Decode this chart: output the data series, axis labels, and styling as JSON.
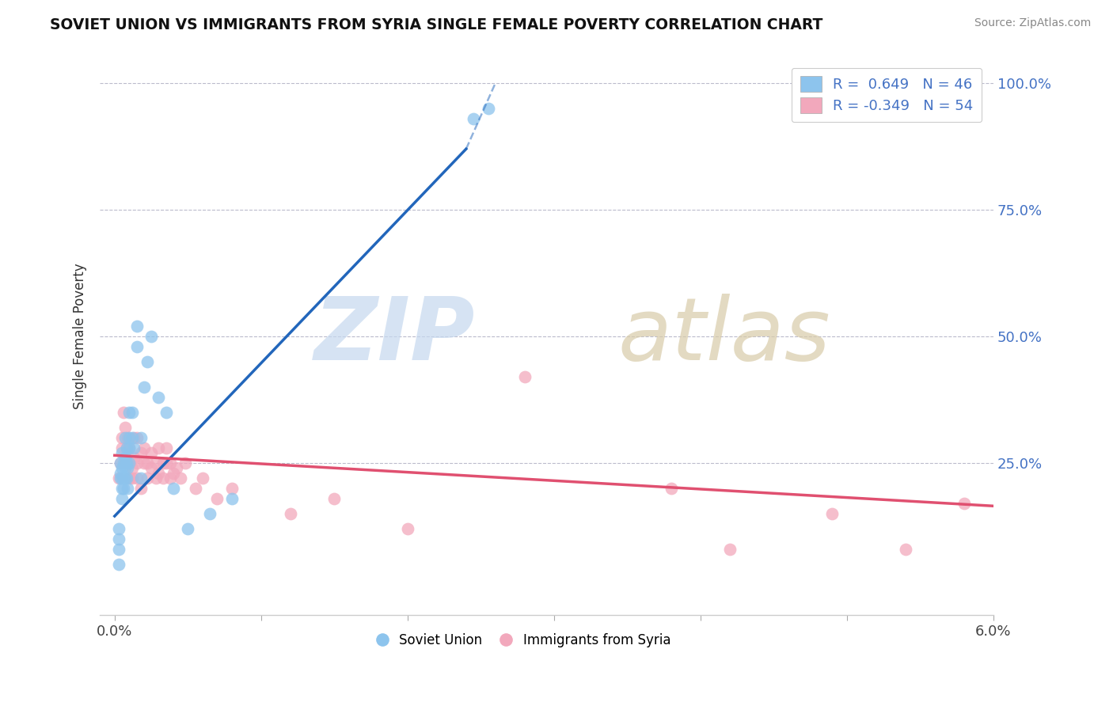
{
  "title": "SOVIET UNION VS IMMIGRANTS FROM SYRIA SINGLE FEMALE POVERTY CORRELATION CHART",
  "source": "Source: ZipAtlas.com",
  "ylabel": "Single Female Poverty",
  "legend_soviet": "Soviet Union",
  "legend_syria": "Immigrants from Syria",
  "R_soviet": 0.649,
  "N_soviet": 46,
  "R_syria": -0.349,
  "N_syria": 54,
  "soviet_color": "#8DC4ED",
  "soviet_line_color": "#2266BB",
  "syria_color": "#F2A8BC",
  "syria_line_color": "#E05070",
  "background_color": "#FFFFFF",
  "xmin": 0.0,
  "xmax": 0.06,
  "ymin": -0.05,
  "ymax": 1.05,
  "soviet_x": [
    0.0003,
    0.0003,
    0.0003,
    0.0003,
    0.0004,
    0.0004,
    0.0004,
    0.0005,
    0.0005,
    0.0005,
    0.0005,
    0.0005,
    0.0006,
    0.0006,
    0.0006,
    0.0007,
    0.0007,
    0.0007,
    0.0007,
    0.0008,
    0.0008,
    0.0008,
    0.0009,
    0.0009,
    0.001,
    0.001,
    0.001,
    0.001,
    0.0012,
    0.0012,
    0.0013,
    0.0015,
    0.0015,
    0.0018,
    0.0018,
    0.002,
    0.0022,
    0.0025,
    0.003,
    0.0035,
    0.004,
    0.005,
    0.0065,
    0.008,
    0.0245,
    0.0255
  ],
  "soviet_y": [
    0.05,
    0.08,
    0.1,
    0.12,
    0.22,
    0.23,
    0.25,
    0.18,
    0.2,
    0.22,
    0.24,
    0.27,
    0.2,
    0.22,
    0.25,
    0.22,
    0.24,
    0.26,
    0.3,
    0.22,
    0.25,
    0.28,
    0.2,
    0.24,
    0.25,
    0.28,
    0.3,
    0.35,
    0.3,
    0.35,
    0.28,
    0.48,
    0.52,
    0.22,
    0.3,
    0.4,
    0.45,
    0.5,
    0.38,
    0.35,
    0.2,
    0.12,
    0.15,
    0.18,
    0.93,
    0.95
  ],
  "syria_x": [
    0.0003,
    0.0004,
    0.0005,
    0.0005,
    0.0006,
    0.0007,
    0.0007,
    0.0008,
    0.0009,
    0.001,
    0.001,
    0.001,
    0.0012,
    0.0012,
    0.0013,
    0.0013,
    0.0015,
    0.0015,
    0.0015,
    0.0018,
    0.0018,
    0.002,
    0.002,
    0.0022,
    0.0022,
    0.0025,
    0.0025,
    0.0028,
    0.0028,
    0.003,
    0.003,
    0.0033,
    0.0033,
    0.0035,
    0.0035,
    0.0038,
    0.0038,
    0.004,
    0.0042,
    0.0045,
    0.0048,
    0.0055,
    0.006,
    0.007,
    0.008,
    0.012,
    0.015,
    0.02,
    0.028,
    0.038,
    0.042,
    0.049,
    0.054,
    0.058
  ],
  "syria_y": [
    0.22,
    0.25,
    0.3,
    0.28,
    0.35,
    0.25,
    0.32,
    0.28,
    0.3,
    0.22,
    0.25,
    0.28,
    0.22,
    0.24,
    0.26,
    0.3,
    0.22,
    0.25,
    0.3,
    0.2,
    0.27,
    0.25,
    0.28,
    0.22,
    0.25,
    0.24,
    0.27,
    0.22,
    0.25,
    0.23,
    0.28,
    0.22,
    0.25,
    0.25,
    0.28,
    0.22,
    0.25,
    0.23,
    0.24,
    0.22,
    0.25,
    0.2,
    0.22,
    0.18,
    0.2,
    0.15,
    0.18,
    0.12,
    0.42,
    0.2,
    0.08,
    0.15,
    0.08,
    0.17
  ],
  "blue_line_x0": 0.0,
  "blue_line_y0": 0.145,
  "blue_line_x1": 0.024,
  "blue_line_y1": 0.87,
  "pink_line_x0": 0.0,
  "pink_line_y0": 0.265,
  "pink_line_x1": 0.06,
  "pink_line_y1": 0.165
}
